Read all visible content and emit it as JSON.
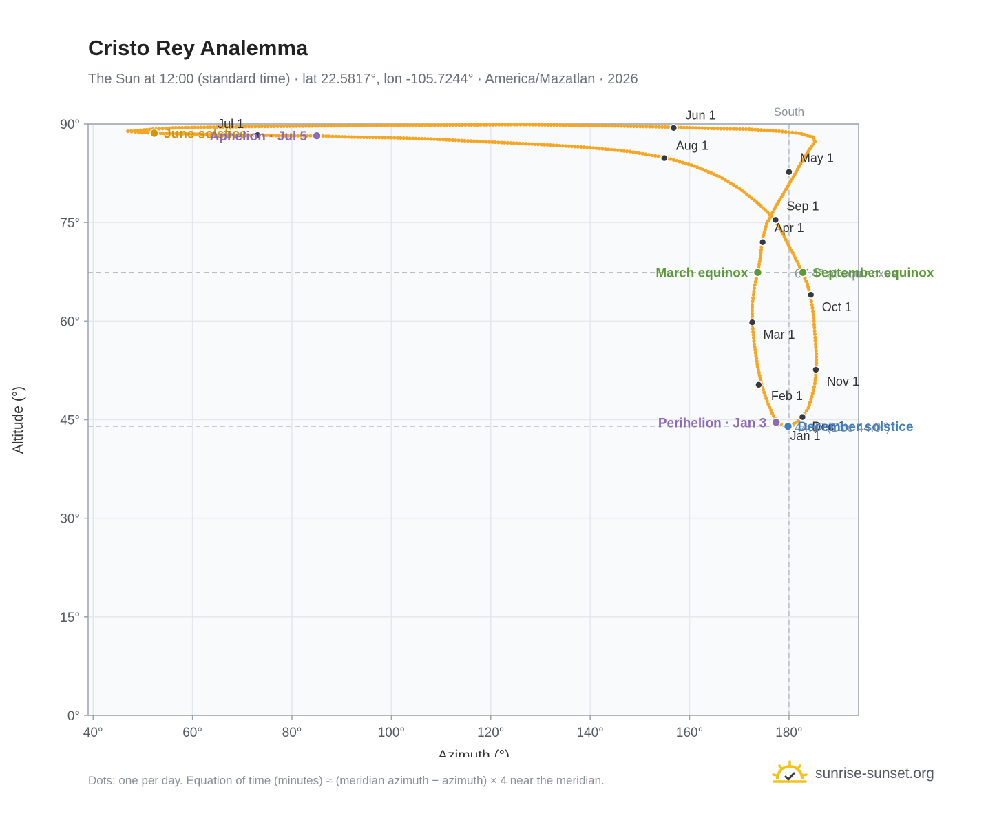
{
  "header": {
    "title": "Cristo Rey Analemma",
    "subtitle": "The Sun at 12:00 (standard time) · lat 22.5817°, lon -105.7244° · America/Mazatlan · 2026"
  },
  "footer": {
    "note": "Dots: one per day. Equation of time (minutes) ≈ (meridian azimuth − azimuth) × 4 near the meridian.",
    "brand": "sunrise-sunset.org"
  },
  "colors": {
    "path": "#f5a623",
    "month_marker": "#343a40",
    "solstice_june": "#d4940a",
    "solstice_december": "#3f7fc1",
    "equinox": "#5b9a34",
    "apsis": "#8e6bb5",
    "grid": "#e3e8ee",
    "plot_bg": "#f8fafc",
    "reference": "#b6bfc8"
  },
  "chart_data": {
    "type": "scatter",
    "xlabel": "Azimuth (°)",
    "ylabel": "Altitude (°)",
    "xlim": [
      39,
      194
    ],
    "ylim": [
      0,
      90
    ],
    "x_ticks": [
      40,
      60,
      80,
      100,
      120,
      140,
      160,
      180
    ],
    "y_ticks": [
      0,
      15,
      30,
      45,
      60,
      75,
      90
    ],
    "x_tick_labels": [
      "40°",
      "60°",
      "80°",
      "100°",
      "120°",
      "140°",
      "160°",
      "180°"
    ],
    "y_tick_labels": [
      "0°",
      "15°",
      "30°",
      "45°",
      "60°",
      "75°",
      "90°"
    ],
    "grid": true,
    "meridian": {
      "azimuth": 180,
      "label": "South"
    },
    "reference_lines": [
      {
        "altitude": 67.4,
        "label": "67.4° at equinoxes"
      },
      {
        "altitude": 44.0,
        "label": "44.0° (Dec 44.0°)"
      }
    ],
    "series": [
      {
        "name": "Daily positions",
        "kind": "path",
        "points": [
          [
            179.2,
            44.0
          ],
          [
            178.4,
            44.3
          ],
          [
            177.5,
            44.8
          ],
          [
            176.6,
            46.0
          ],
          [
            175.6,
            47.8
          ],
          [
            174.6,
            50.0
          ],
          [
            173.7,
            53.0
          ],
          [
            173.0,
            56.5
          ],
          [
            172.6,
            59.8
          ],
          [
            172.6,
            62.5
          ],
          [
            173.1,
            65.5
          ],
          [
            173.7,
            67.4
          ],
          [
            174.2,
            69.5
          ],
          [
            174.6,
            72.2
          ],
          [
            175.5,
            74.8
          ],
          [
            177.0,
            77.0
          ],
          [
            178.8,
            79.3
          ],
          [
            180.6,
            81.6
          ],
          [
            182.0,
            83.5
          ],
          [
            183.6,
            85.5
          ],
          [
            185.2,
            87.3
          ],
          [
            184.8,
            88.0
          ],
          [
            182.0,
            88.6
          ],
          [
            178.0,
            88.9
          ],
          [
            172.0,
            89.2
          ],
          [
            165.0,
            89.3
          ],
          [
            157.0,
            89.5
          ],
          [
            145.0,
            89.7
          ],
          [
            126.6,
            89.9
          ],
          [
            105.0,
            89.8
          ],
          [
            86.0,
            89.7
          ],
          [
            72.0,
            89.6
          ],
          [
            63.0,
            89.5
          ],
          [
            56.0,
            89.4
          ],
          [
            52.0,
            89.2
          ],
          [
            49.0,
            89.0
          ],
          [
            47.0,
            88.9
          ],
          [
            48.5,
            88.8
          ],
          [
            52.3,
            88.6
          ],
          [
            58.0,
            88.5
          ],
          [
            64.0,
            88.4
          ],
          [
            69.0,
            88.3
          ],
          [
            73.0,
            88.3
          ],
          [
            78.0,
            88.2
          ],
          [
            85.0,
            88.2
          ],
          [
            92.0,
            88.0
          ],
          [
            100.0,
            87.9
          ],
          [
            108.0,
            87.7
          ],
          [
            116.0,
            87.4
          ],
          [
            124.0,
            87.1
          ],
          [
            132.0,
            86.8
          ],
          [
            140.0,
            86.4
          ],
          [
            148.0,
            85.8
          ],
          [
            155.0,
            84.9
          ],
          [
            161.0,
            83.6
          ],
          [
            166.0,
            82.0
          ],
          [
            170.0,
            80.2
          ],
          [
            173.5,
            78.1
          ],
          [
            176.5,
            76.0
          ],
          [
            178.3,
            74.0
          ],
          [
            179.6,
            72.0
          ],
          [
            181.0,
            70.0
          ],
          [
            182.7,
            67.4
          ],
          [
            183.7,
            65.6
          ],
          [
            184.3,
            64.0
          ],
          [
            184.9,
            61.0
          ],
          [
            185.2,
            58.0
          ],
          [
            185.5,
            55.0
          ],
          [
            185.5,
            52.7
          ],
          [
            185.2,
            50.5
          ],
          [
            184.6,
            48.5
          ],
          [
            183.9,
            46.8
          ],
          [
            182.8,
            45.5
          ],
          [
            181.5,
            44.6
          ],
          [
            180.5,
            44.2
          ],
          [
            179.2,
            44.0
          ]
        ]
      },
      {
        "name": "Month starts",
        "kind": "markers",
        "points": [
          {
            "label": "Jan 1",
            "az": 179.8,
            "alt": 44.1
          },
          {
            "label": "Feb 1",
            "az": 173.9,
            "alt": 50.3
          },
          {
            "label": "Mar 1",
            "az": 172.6,
            "alt": 59.8
          },
          {
            "label": "Apr 1",
            "az": 174.7,
            "alt": 72.0
          },
          {
            "label": "May 1",
            "az": 180.0,
            "alt": 82.7
          },
          {
            "label": "Jun 1",
            "az": 156.8,
            "alt": 89.4
          },
          {
            "label": "Jul 1",
            "az": 73.1,
            "alt": 88.3
          },
          {
            "label": "Aug 1",
            "az": 154.9,
            "alt": 84.8
          },
          {
            "label": "Sep 1",
            "az": 177.3,
            "alt": 75.4
          },
          {
            "label": "Oct 1",
            "az": 184.4,
            "alt": 64.0
          },
          {
            "label": "Nov 1",
            "az": 185.4,
            "alt": 52.6
          },
          {
            "label": "Dec 1",
            "az": 182.7,
            "alt": 45.4
          }
        ]
      },
      {
        "name": "Key events",
        "kind": "events",
        "points": [
          {
            "label": "June solstice",
            "az": 52.3,
            "alt": 88.6,
            "color": "#d4940a",
            "side": "right"
          },
          {
            "label": "Aphelion · Jul 5",
            "az": 85.0,
            "alt": 88.2,
            "color": "#8e6bb5",
            "side": "left"
          },
          {
            "label": "March equinox",
            "az": 173.7,
            "alt": 67.4,
            "color": "#5b9a34",
            "side": "left"
          },
          {
            "label": "September equinox",
            "az": 182.8,
            "alt": 67.4,
            "color": "#5b9a34",
            "side": "right"
          },
          {
            "label": "Perihelion · Jan 3",
            "az": 177.4,
            "alt": 44.6,
            "color": "#8e6bb5",
            "side": "left"
          },
          {
            "label": "December solstice",
            "az": 179.8,
            "alt": 44.0,
            "color": "#3f7fc1",
            "side": "right"
          }
        ]
      }
    ]
  }
}
